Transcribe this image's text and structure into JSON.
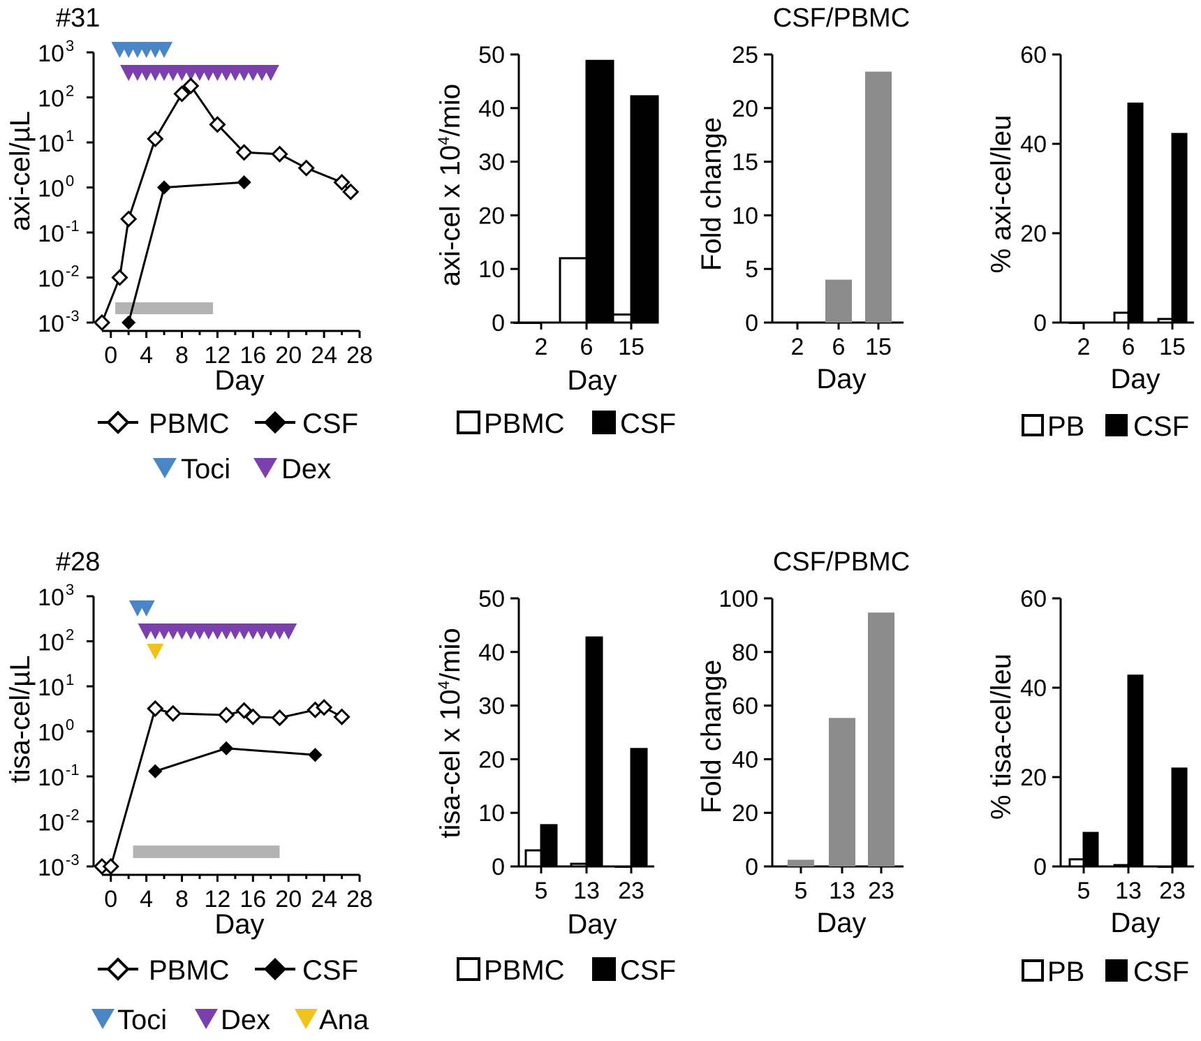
{
  "figure": {
    "colors": {
      "toci": "#4a86c5",
      "dex": "#7b3fae",
      "ana": "#f1c21b",
      "fold_bar": "#8c8c8c",
      "treatment_bar": "#b3b3b3",
      "black": "#000000",
      "white": "#ffffff"
    },
    "legend_text": {
      "pbmc": "PBMC",
      "csf": "CSF",
      "pb": "PB",
      "toci": "Toci",
      "dex": "Dex",
      "ana": "Ana"
    }
  },
  "chart_data": [
    {
      "id": "p31_kinetics",
      "type": "line",
      "panel_label": "#31",
      "ylabel": "axi-cel/µL",
      "xlabel": "Day",
      "yscale": "log",
      "ylim": [
        0.001,
        1000
      ],
      "yticks": [
        -3,
        -2,
        -1,
        0,
        1,
        2,
        3
      ],
      "xlim": [
        -1,
        28
      ],
      "xticks": [
        0,
        4,
        8,
        12,
        16,
        20,
        24,
        28
      ],
      "series": [
        {
          "name": "PBMC",
          "marker": "open-diamond",
          "points": [
            [
              -1,
              0.001
            ],
            [
              1,
              0.01
            ],
            [
              2,
              0.2
            ],
            [
              5,
              12
            ],
            [
              8,
              120
            ],
            [
              9,
              180
            ],
            [
              12,
              25
            ],
            [
              15,
              6
            ],
            [
              19,
              5.5
            ],
            [
              22,
              2.7
            ],
            [
              26,
              1.3
            ],
            [
              27,
              0.8
            ]
          ]
        },
        {
          "name": "CSF",
          "marker": "filled-diamond",
          "points": [
            [
              2,
              0.001
            ],
            [
              6,
              1
            ],
            [
              15,
              1.3
            ]
          ]
        }
      ],
      "treatments": [
        {
          "name": "Toci",
          "days": [
            1,
            2,
            3,
            4,
            5,
            6
          ],
          "row": 0
        },
        {
          "name": "Dex",
          "days": [
            2,
            3,
            4,
            5,
            6,
            7,
            8,
            9,
            10,
            11,
            12,
            13,
            14,
            15,
            16,
            17,
            18
          ],
          "row": 1
        }
      ],
      "gray_bar_days": [
        0.5,
        11.5
      ]
    },
    {
      "id": "p31_counts",
      "type": "bar",
      "ylabel": "axi-cel x 10",
      "ylabel_sup": "4",
      "ylabel_suffix": "/mio",
      "xlabel": "Day",
      "categories": [
        "2",
        "6",
        "15"
      ],
      "ylim": [
        0,
        50
      ],
      "yticks": [
        0,
        10,
        20,
        30,
        40,
        50
      ],
      "series": [
        {
          "name": "PBMC",
          "values": [
            0,
            12,
            1.5
          ]
        },
        {
          "name": "CSF",
          "values": [
            null,
            48.8,
            42.2
          ]
        }
      ]
    },
    {
      "id": "p31_fold",
      "type": "bar",
      "title": "CSF/PBMC",
      "ylabel": "Fold change",
      "xlabel": "Day",
      "categories": [
        "2",
        "6",
        "15"
      ],
      "ylim": [
        0,
        25
      ],
      "yticks": [
        0,
        5,
        10,
        15,
        20,
        25
      ],
      "values": [
        null,
        4,
        23.4
      ]
    },
    {
      "id": "p31_percent",
      "type": "bar",
      "ylabel": "% axi-cel/leu",
      "xlabel": "Day",
      "categories": [
        "2",
        "6",
        "15"
      ],
      "ylim": [
        0,
        60
      ],
      "yticks": [
        0,
        20,
        40,
        60
      ],
      "series": [
        {
          "name": "PB",
          "values": [
            0,
            2.2,
            0.8
          ]
        },
        {
          "name": "CSF",
          "values": [
            null,
            49,
            42.2
          ]
        }
      ]
    },
    {
      "id": "p28_kinetics",
      "type": "line",
      "panel_label": "#28",
      "ylabel": "tisa-cel/µL",
      "xlabel": "Day",
      "yscale": "log",
      "ylim": [
        0.001,
        1000
      ],
      "yticks": [
        -3,
        -2,
        -1,
        0,
        1,
        2,
        3
      ],
      "xlim": [
        -1,
        28
      ],
      "xticks": [
        0,
        4,
        8,
        12,
        16,
        20,
        24,
        28
      ],
      "series": [
        {
          "name": "PBMC",
          "marker": "open-diamond",
          "points": [
            [
              -1,
              0.001
            ],
            [
              0,
              0.001
            ],
            [
              5,
              3.2
            ],
            [
              7,
              2.5
            ],
            [
              13,
              2.3
            ],
            [
              15,
              2.9
            ],
            [
              16,
              2.1
            ],
            [
              19,
              2
            ],
            [
              23,
              3
            ],
            [
              24,
              3.4
            ],
            [
              26,
              2.1
            ]
          ]
        },
        {
          "name": "CSF",
          "marker": "filled-diamond",
          "points": [
            [
              5,
              0.13
            ],
            [
              13,
              0.42
            ],
            [
              23,
              0.3
            ]
          ]
        }
      ],
      "treatments": [
        {
          "name": "Toci",
          "days": [
            3,
            4
          ],
          "row": 0
        },
        {
          "name": "Dex",
          "days": [
            4,
            5,
            6,
            7,
            8,
            9,
            10,
            11,
            12,
            13,
            14,
            15,
            16,
            17,
            18,
            19,
            20
          ],
          "row": 1
        },
        {
          "name": "Ana",
          "days": [
            5
          ],
          "row": 2
        }
      ],
      "gray_bar_days": [
        2.5,
        19
      ]
    },
    {
      "id": "p28_counts",
      "type": "bar",
      "ylabel": "tisa-cel x 10",
      "ylabel_sup": "4",
      "ylabel_suffix": "/mio",
      "xlabel": "Day",
      "categories": [
        "5",
        "13",
        "23"
      ],
      "ylim": [
        0,
        50
      ],
      "yticks": [
        0,
        10,
        20,
        30,
        40,
        50
      ],
      "series": [
        {
          "name": "PBMC",
          "values": [
            3,
            0.5,
            0
          ]
        },
        {
          "name": "CSF",
          "values": [
            7.7,
            42.7,
            21.9
          ]
        }
      ]
    },
    {
      "id": "p28_fold",
      "type": "bar",
      "title": "CSF/PBMC",
      "ylabel": "Fold change",
      "xlabel": "Day",
      "categories": [
        "5",
        "13",
        "23"
      ],
      "ylim": [
        0,
        100
      ],
      "yticks": [
        0,
        20,
        40,
        60,
        80,
        100
      ],
      "values": [
        2.5,
        55.4,
        94.7
      ]
    },
    {
      "id": "p28_percent",
      "type": "bar",
      "ylabel": "% tisa-cel/leu",
      "xlabel": "Day",
      "categories": [
        "5",
        "13",
        "23"
      ],
      "ylim": [
        0,
        60
      ],
      "yticks": [
        0,
        20,
        40,
        60
      ],
      "series": [
        {
          "name": "PB",
          "values": [
            1.6,
            0.3,
            0
          ]
        },
        {
          "name": "CSF",
          "values": [
            7.5,
            42.7,
            21.9
          ]
        }
      ]
    }
  ]
}
